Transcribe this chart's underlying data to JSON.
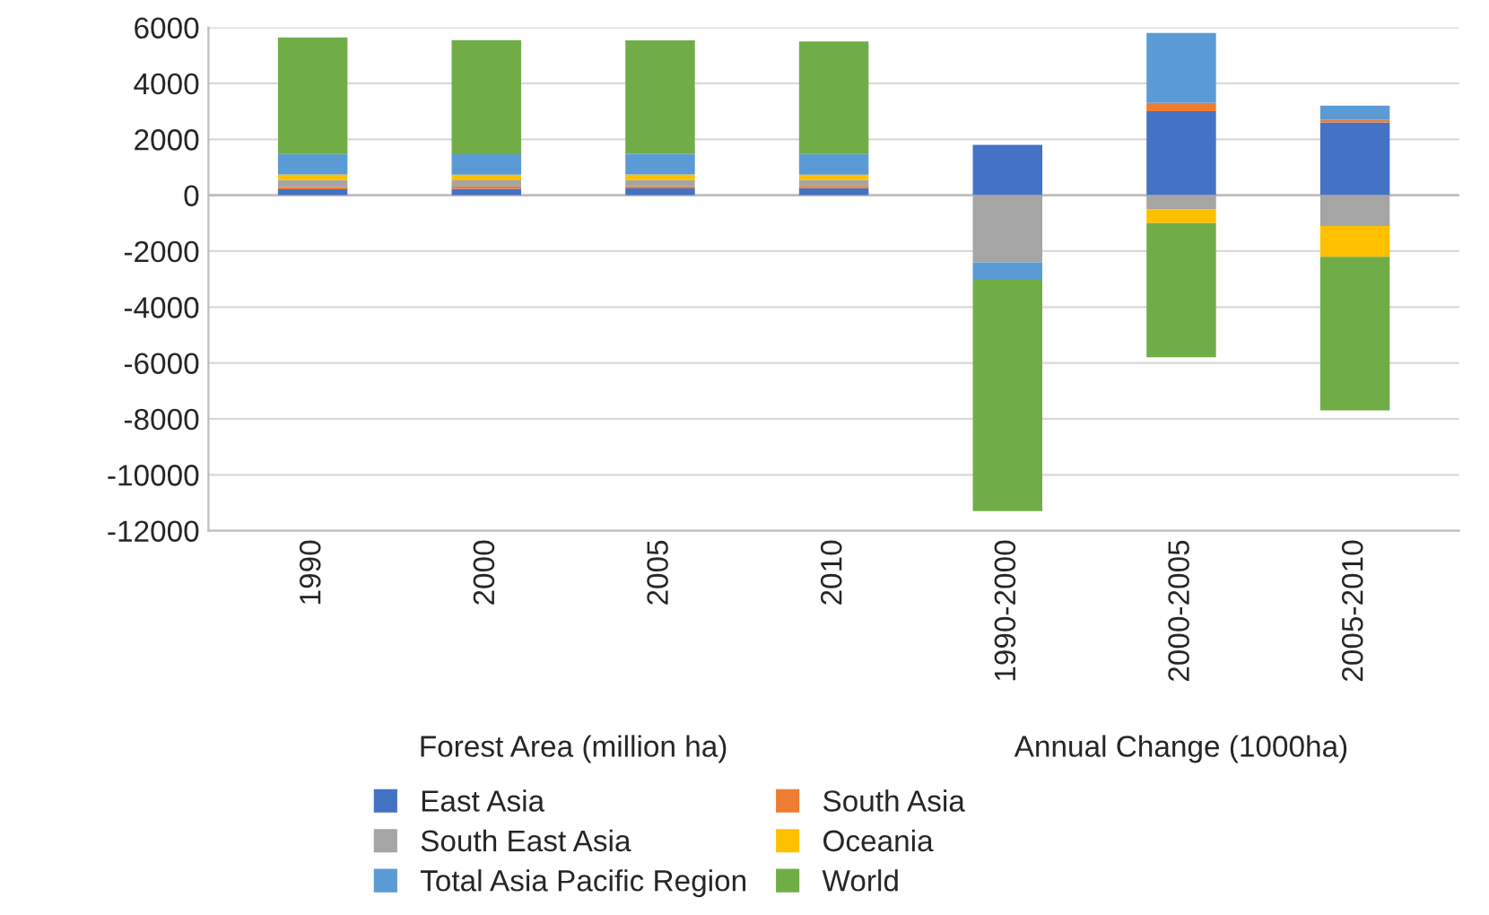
{
  "chart_data": {
    "type": "bar",
    "stacked": true,
    "categories": [
      "1990",
      "2000",
      "2005",
      "2010",
      "1990-2000",
      "2000-2005",
      "2005-2010"
    ],
    "series": [
      {
        "name": "East Asia",
        "color": "#4472c4",
        "values": [
          210,
          230,
          240,
          250,
          1800,
          3000,
          2600
        ]
      },
      {
        "name": "South Asia",
        "color": "#ed7d31",
        "values": [
          80,
          80,
          80,
          80,
          null,
          300,
          100
        ]
      },
      {
        "name": "South East Asia",
        "color": "#a5a5a5",
        "values": [
          250,
          220,
          220,
          210,
          -2400,
          -500,
          -1100
        ]
      },
      {
        "name": "Oceania",
        "color": "#ffc000",
        "values": [
          200,
          200,
          200,
          190,
          null,
          -500,
          -1100
        ]
      },
      {
        "name": "Total Asia Pacific Region",
        "color": "#5b9bd5",
        "values": [
          730,
          730,
          740,
          740,
          -600,
          2500,
          500
        ]
      },
      {
        "name": "World",
        "color": "#70ad47",
        "values": [
          4170,
          4090,
          4060,
          4030,
          -8300,
          -4800,
          -5500
        ]
      }
    ],
    "ylim": [
      -12000,
      6000
    ],
    "yticks": [
      -12000,
      -10000,
      -8000,
      -6000,
      -4000,
      -2000,
      0,
      2000,
      4000,
      6000
    ],
    "grid": "y",
    "legend": "bottom",
    "annotations": [
      "Forest Area (million ha)",
      "Annual Change (1000ha)"
    ]
  }
}
